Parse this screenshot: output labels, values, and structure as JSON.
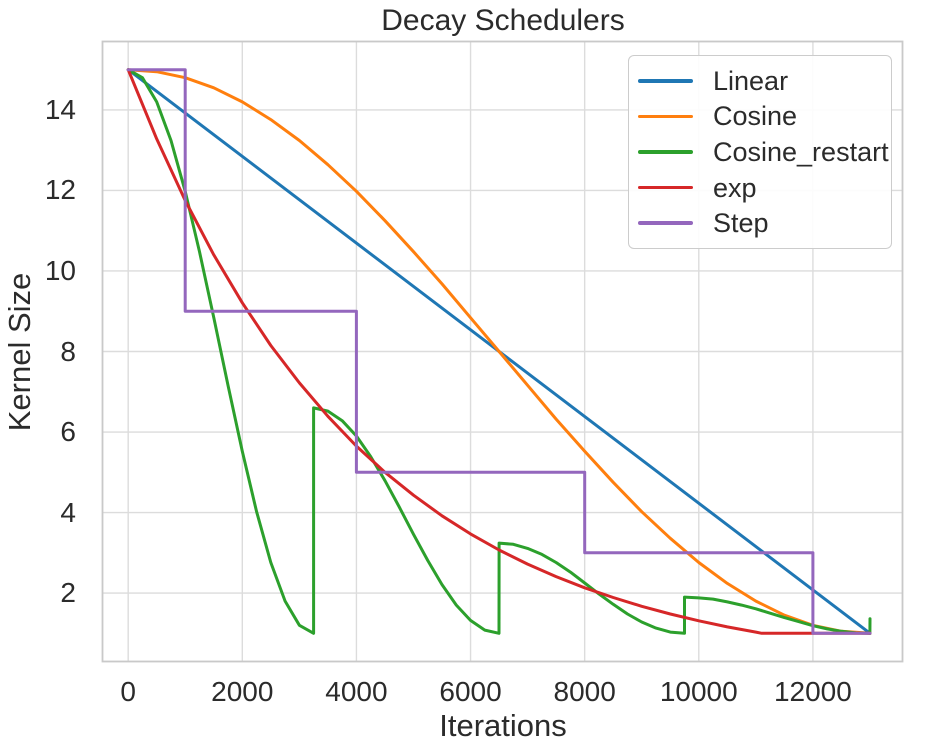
{
  "chart_data": {
    "type": "line",
    "title": "Decay Schedulers",
    "xlabel": "Iterations",
    "ylabel": "Kernel Size",
    "xlim": [
      -450,
      13570
    ],
    "ylim": [
      0.3,
      15.7
    ],
    "x_ticks": [
      0,
      2000,
      4000,
      6000,
      8000,
      10000,
      12000
    ],
    "y_ticks": [
      2,
      4,
      6,
      8,
      10,
      12,
      14
    ],
    "grid": true,
    "legend_position": "upper right",
    "series": [
      {
        "name": "Linear",
        "color": "#1f77b4",
        "points": [
          [
            0,
            15
          ],
          [
            13000,
            1
          ]
        ]
      },
      {
        "name": "Cosine",
        "color": "#ff7f0e",
        "points": [
          [
            0,
            15
          ],
          [
            500,
            14.95
          ],
          [
            1000,
            14.8
          ],
          [
            1500,
            14.55
          ],
          [
            2000,
            14.2
          ],
          [
            2500,
            13.76
          ],
          [
            3000,
            13.24
          ],
          [
            3500,
            12.64
          ],
          [
            4000,
            11.98
          ],
          [
            4500,
            11.25
          ],
          [
            5000,
            10.48
          ],
          [
            5500,
            9.68
          ],
          [
            6000,
            8.84
          ],
          [
            6500,
            8
          ],
          [
            7000,
            7.16
          ],
          [
            7500,
            6.32
          ],
          [
            8000,
            5.52
          ],
          [
            8500,
            4.75
          ],
          [
            9000,
            4.02
          ],
          [
            9500,
            3.36
          ],
          [
            10000,
            2.76
          ],
          [
            10500,
            2.24
          ],
          [
            11000,
            1.8
          ],
          [
            11500,
            1.45
          ],
          [
            12000,
            1.2
          ],
          [
            12500,
            1.05
          ],
          [
            13000,
            1
          ]
        ]
      },
      {
        "name": "Cosine_restart",
        "color": "#2ca02c",
        "points": [
          [
            0,
            15
          ],
          [
            250,
            14.8
          ],
          [
            500,
            14.2
          ],
          [
            750,
            13.24
          ],
          [
            1000,
            11.98
          ],
          [
            1250,
            10.48
          ],
          [
            1500,
            8.84
          ],
          [
            1750,
            7.16
          ],
          [
            2000,
            5.52
          ],
          [
            2250,
            4.02
          ],
          [
            2500,
            2.76
          ],
          [
            2750,
            1.8
          ],
          [
            3000,
            1.2
          ],
          [
            3249,
            1
          ],
          [
            3250,
            6.6
          ],
          [
            3500,
            6.52
          ],
          [
            3750,
            6.28
          ],
          [
            4000,
            5.9
          ],
          [
            4250,
            5.39
          ],
          [
            4500,
            4.79
          ],
          [
            4750,
            4.14
          ],
          [
            5000,
            3.46
          ],
          [
            5250,
            2.81
          ],
          [
            5500,
            2.21
          ],
          [
            5750,
            1.7
          ],
          [
            6000,
            1.32
          ],
          [
            6250,
            1.08
          ],
          [
            6499,
            1
          ],
          [
            6500,
            3.24
          ],
          [
            6750,
            3.21
          ],
          [
            7000,
            3.11
          ],
          [
            7250,
            2.96
          ],
          [
            7500,
            2.76
          ],
          [
            7750,
            2.52
          ],
          [
            8000,
            2.25
          ],
          [
            8250,
            1.98
          ],
          [
            8500,
            1.72
          ],
          [
            8750,
            1.48
          ],
          [
            9000,
            1.28
          ],
          [
            9250,
            1.13
          ],
          [
            9500,
            1.03
          ],
          [
            9749,
            1
          ],
          [
            9750,
            1.9
          ],
          [
            10000,
            1.88
          ],
          [
            10250,
            1.85
          ],
          [
            10500,
            1.78
          ],
          [
            10750,
            1.7
          ],
          [
            11000,
            1.61
          ],
          [
            11250,
            1.5
          ],
          [
            11500,
            1.39
          ],
          [
            11750,
            1.29
          ],
          [
            12000,
            1.19
          ],
          [
            12250,
            1.11
          ],
          [
            12500,
            1.05
          ],
          [
            12750,
            1.01
          ],
          [
            12999,
            1
          ],
          [
            13000,
            1.36
          ]
        ]
      },
      {
        "name": "exp",
        "color": "#d62728",
        "points": [
          [
            0,
            15
          ],
          [
            500,
            13.28
          ],
          [
            1000,
            11.75
          ],
          [
            1500,
            10.4
          ],
          [
            2000,
            9.21
          ],
          [
            2500,
            8.15
          ],
          [
            3000,
            7.22
          ],
          [
            3500,
            6.39
          ],
          [
            4000,
            5.65
          ],
          [
            4500,
            5
          ],
          [
            5000,
            4.43
          ],
          [
            5500,
            3.92
          ],
          [
            6000,
            3.47
          ],
          [
            6500,
            3.07
          ],
          [
            7000,
            2.72
          ],
          [
            7500,
            2.41
          ],
          [
            8000,
            2.13
          ],
          [
            8500,
            1.89
          ],
          [
            9000,
            1.67
          ],
          [
            9500,
            1.48
          ],
          [
            10000,
            1.31
          ],
          [
            10500,
            1.16
          ],
          [
            11000,
            1.03
          ],
          [
            11103,
            1
          ],
          [
            11500,
            1
          ],
          [
            12000,
            1
          ],
          [
            12500,
            1
          ],
          [
            13000,
            1
          ]
        ]
      },
      {
        "name": "Step",
        "color": "#9467bd",
        "points": [
          [
            0,
            15
          ],
          [
            1000,
            15
          ],
          [
            1000,
            9
          ],
          [
            4000,
            9
          ],
          [
            4000,
            5
          ],
          [
            8000,
            5
          ],
          [
            8000,
            3
          ],
          [
            12000,
            3
          ],
          [
            12000,
            1
          ],
          [
            13000,
            1
          ]
        ]
      }
    ]
  },
  "style": {
    "grid_color": "#dcdcdc",
    "spine_color": "#c9c9c9",
    "background": "#ffffff",
    "line_width": 3
  }
}
